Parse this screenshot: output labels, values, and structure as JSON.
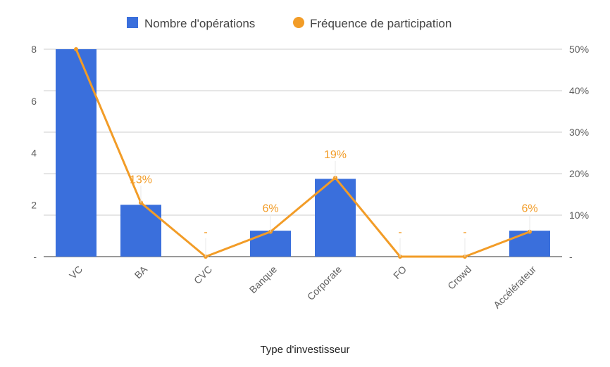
{
  "chart_data": {
    "type": "bar",
    "title": "",
    "xlabel": "Type d'investisseur",
    "ylabel": "",
    "categories": [
      "VC",
      "BA",
      "CVC",
      "Banque",
      "Corporate",
      "FO",
      "Crowd",
      "Accélérateur"
    ],
    "series": [
      {
        "name": "Nombre d'opérations",
        "type": "bar",
        "axis": "left",
        "color": "#3a6fdc",
        "values": [
          8,
          2,
          0,
          1,
          3,
          0,
          0,
          1
        ]
      },
      {
        "name": "Fréquence de participation",
        "type": "line",
        "axis": "right",
        "color": "#f29c27",
        "values": [
          50,
          13,
          0,
          6,
          19,
          0,
          0,
          6
        ]
      }
    ],
    "data_labels": [
      "",
      "13%",
      "-",
      "6%",
      "19%",
      "-",
      "-",
      "6%"
    ],
    "y_left": {
      "min": 0,
      "max": 8,
      "ticks": [
        0,
        2,
        4,
        6,
        8
      ],
      "tick_labels": [
        "-",
        "2",
        "4",
        "6",
        "8"
      ]
    },
    "y_right": {
      "min": 0,
      "max": 50,
      "ticks": [
        0,
        10,
        20,
        30,
        40,
        50
      ],
      "tick_labels": [
        "-",
        "10%",
        "20%",
        "30%",
        "40%",
        "50%"
      ]
    },
    "grid": true,
    "legend_position": "top-center"
  }
}
